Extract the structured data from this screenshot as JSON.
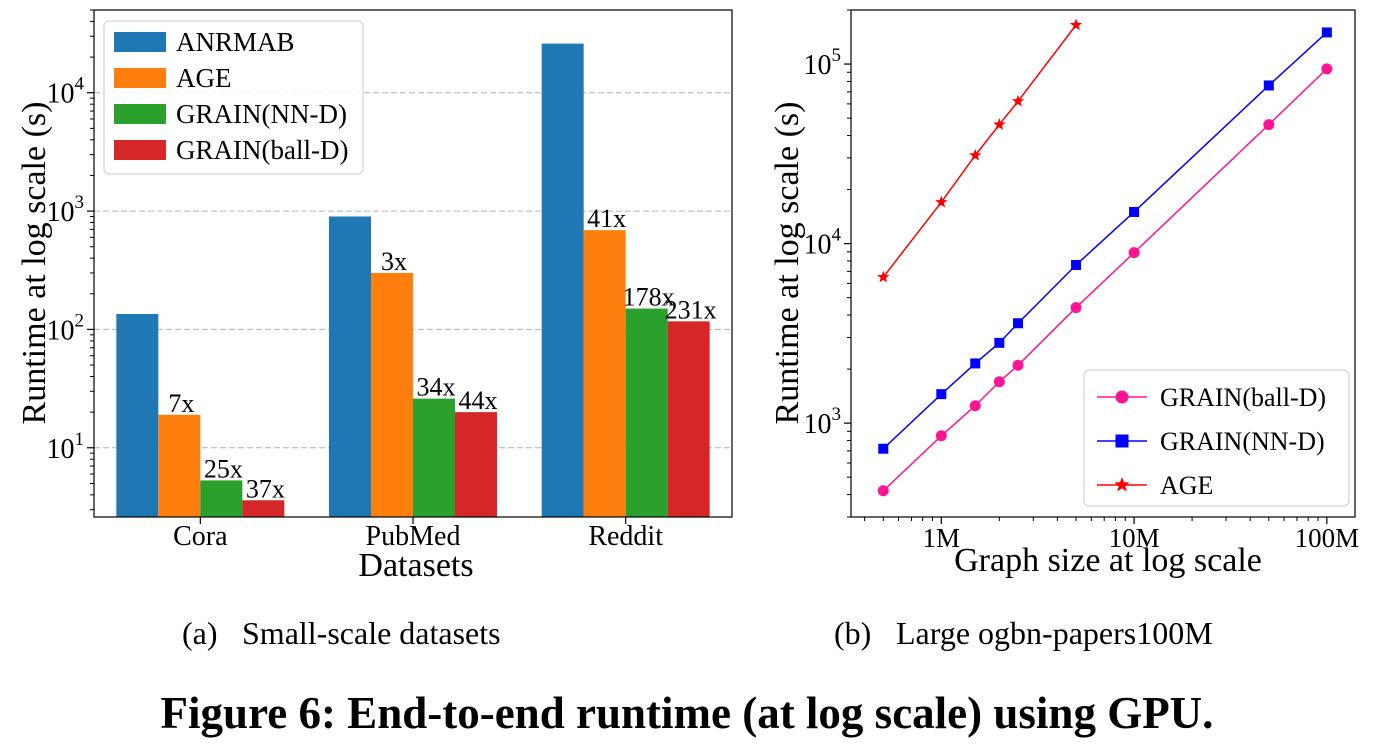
{
  "figure": {
    "title": "Figure 6: End-to-end runtime (at log scale) using GPU."
  },
  "chart_data": [
    {
      "type": "bar",
      "caption_tag": "(a)",
      "caption_text": "Small-scale datasets",
      "xlabel": "Datasets",
      "ylabel": "Runtime at log scale (s)",
      "yscale": "log",
      "ylim": [
        2.6,
        50000
      ],
      "yticks": [
        {
          "value": 10,
          "base": "10",
          "exp": "1"
        },
        {
          "value": 100,
          "base": "10",
          "exp": "2"
        },
        {
          "value": 1000,
          "base": "10",
          "exp": "3"
        },
        {
          "value": 10000,
          "base": "10",
          "exp": "4"
        }
      ],
      "grid": true,
      "legend_position": "upper-left",
      "categories": [
        "Cora",
        "PubMed",
        "Reddit"
      ],
      "series": [
        {
          "name": "ANRMAB",
          "color": "#1f77b4",
          "values": [
            135,
            900,
            26000
          ],
          "labels": [
            "",
            "",
            ""
          ]
        },
        {
          "name": "AGE",
          "color": "#ff7f0e",
          "values": [
            19,
            300,
            690
          ],
          "labels": [
            "7x",
            "3x",
            "41x"
          ]
        },
        {
          "name": "GRAIN(NN-D)",
          "color": "#2ca02c",
          "values": [
            5.3,
            26,
            150
          ],
          "labels": [
            "25x",
            "34x",
            "178x"
          ]
        },
        {
          "name": "GRAIN(ball-D)",
          "color": "#d62728",
          "values": [
            3.6,
            20,
            117
          ],
          "labels": [
            "37x",
            "44x",
            "231x"
          ]
        }
      ]
    },
    {
      "type": "line",
      "caption_tag": "(b)",
      "caption_text": "Large ogbn-papers100M",
      "xlabel": "Graph size at log scale",
      "ylabel": "Runtime at log scale (s)",
      "xscale": "log",
      "yscale": "log",
      "xlim": [
        340000,
        140000000
      ],
      "ylim": [
        300,
        200000
      ],
      "xticks": [
        {
          "value": 1000000,
          "label": "1M"
        },
        {
          "value": 10000000,
          "label": "10M"
        },
        {
          "value": 100000000,
          "label": "100M"
        }
      ],
      "yticks": [
        {
          "value": 1000,
          "base": "10",
          "exp": "3"
        },
        {
          "value": 10000,
          "base": "10",
          "exp": "4"
        },
        {
          "value": 100000,
          "base": "10",
          "exp": "5"
        }
      ],
      "grid": false,
      "legend_position": "lower-right",
      "series": [
        {
          "name": "GRAIN(ball-D)",
          "color": "#ff1493",
          "marker": "circle",
          "x": [
            500000,
            1000000,
            1500000,
            2000000,
            2500000,
            5000000,
            10000000,
            50000000,
            100000000
          ],
          "y": [
            420,
            850,
            1250,
            1700,
            2100,
            4400,
            8900,
            46000,
            94000
          ]
        },
        {
          "name": "GRAIN(NN-D)",
          "color": "#0000ff",
          "marker": "square",
          "x": [
            500000,
            1000000,
            1500000,
            2000000,
            2500000,
            5000000,
            10000000,
            50000000,
            100000000
          ],
          "y": [
            720,
            1450,
            2150,
            2800,
            3600,
            7600,
            15000,
            76000,
            150000
          ]
        },
        {
          "name": "AGE",
          "color": "#ff0000",
          "marker": "star",
          "x": [
            500000,
            1000000,
            1500000,
            2000000,
            2500000,
            5000000
          ],
          "y": [
            6500,
            17000,
            31000,
            46000,
            62000,
            165000
          ]
        }
      ]
    }
  ]
}
